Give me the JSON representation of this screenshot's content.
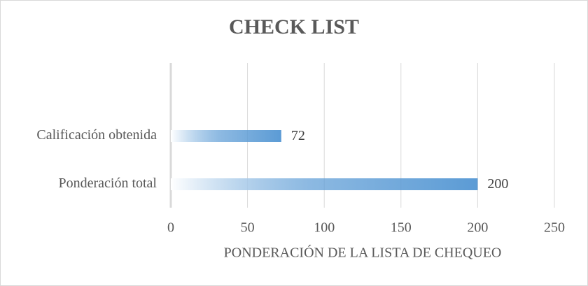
{
  "chart_data": {
    "type": "bar",
    "orientation": "horizontal",
    "title": "CHECK LIST",
    "categories": [
      "Calificación obtenida",
      "Ponderación total"
    ],
    "values": [
      72,
      200
    ],
    "color": "#5b9bd5",
    "xlabel": "PONDERACIÓN DE LA LISTA DE CHEQUEO",
    "xlim": [
      0,
      250
    ],
    "xticks": [
      0,
      50,
      100,
      150,
      200,
      250
    ],
    "grid": true
  }
}
